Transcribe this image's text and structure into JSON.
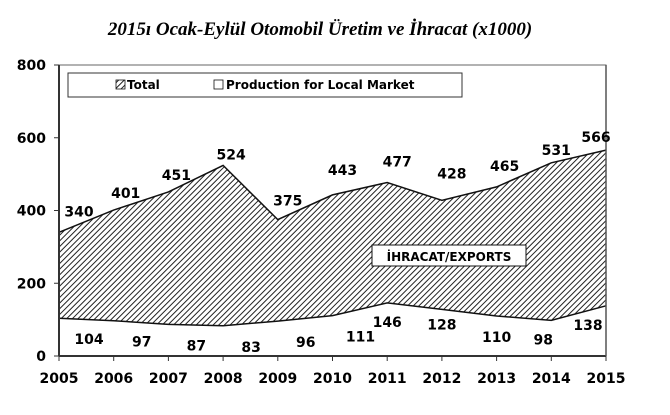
{
  "chart_data": {
    "type": "area",
    "title": "2015ı Ocak-Eylül Otomobil Üretim ve İhracat (x1000)",
    "xlabel": "",
    "ylabel": "",
    "ylim": [
      0,
      800
    ],
    "yticks": [
      "0",
      "200",
      "400",
      "600",
      "800"
    ],
    "ytick_values": [
      0,
      200,
      400,
      600,
      800
    ],
    "categories": [
      "2005",
      "2006",
      "2007",
      "2008",
      "2009",
      "2010",
      "2011",
      "2012",
      "2013",
      "2014",
      "2015"
    ],
    "series": [
      {
        "name": "Total",
        "values": [
          340,
          401,
          451,
          524,
          375,
          443,
          477,
          428,
          465,
          531,
          566
        ],
        "labels": [
          "340",
          "401",
          "451",
          "524",
          "375",
          "443",
          "477",
          "428",
          "465",
          "531",
          "566"
        ],
        "fill": "hatched"
      },
      {
        "name": "Production for Local Market",
        "values": [
          104,
          97,
          87,
          83,
          96,
          111,
          146,
          128,
          110,
          98,
          138
        ],
        "labels": [
          "104",
          "97",
          "87",
          "83",
          "96",
          "111",
          "146",
          "128",
          "110",
          "98",
          "138"
        ],
        "fill": "white"
      }
    ],
    "legend": {
      "position": "top-left",
      "entries": [
        "Total",
        "Production for Local Market"
      ]
    },
    "annotation": "İHRACAT/EXPORTS",
    "grid": false
  },
  "colors": {
    "hatch_line": "#222222",
    "axis": "#333333",
    "text": "#000000",
    "background": "#ffffff"
  }
}
